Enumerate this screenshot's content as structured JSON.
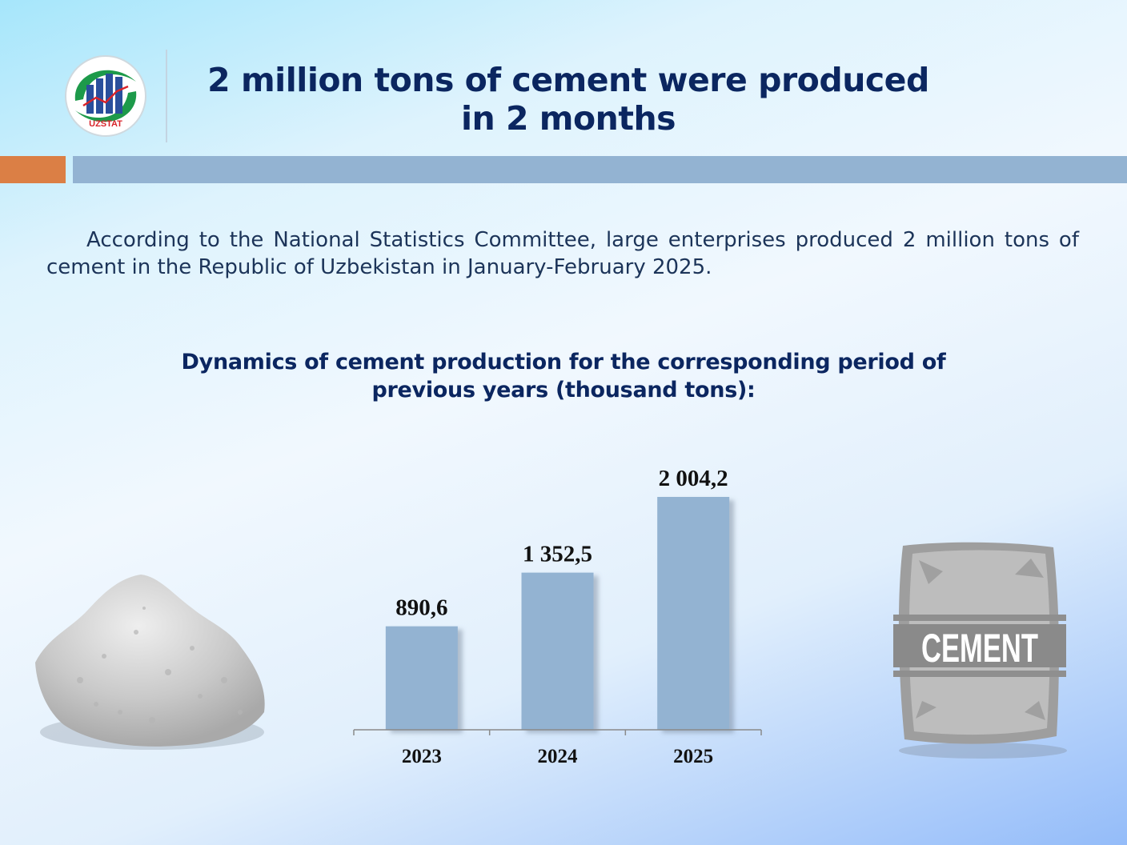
{
  "header": {
    "logo_text": "UZSTAT",
    "title_line1": "2 million tons of cement were produced",
    "title_line2": "in 2 months"
  },
  "intro": {
    "paragraph": "According to the National Statistics Committee, large enterprises produced 2 million tons of cement in the Republic of Uzbekistan in January-February 2025."
  },
  "chart_heading": {
    "line1": "Dynamics of cement production for the corresponding period of",
    "line2": "previous years (thousand tons):"
  },
  "colors": {
    "title": "#0b2660",
    "bar": "#93b3d2",
    "accent_orange": "#db7f45"
  },
  "decor": {
    "left_image": "cement-powder-pile",
    "right_image": "cement-bag",
    "bag_label": "CEMENT"
  },
  "chart_data": {
    "type": "bar",
    "categories": [
      "2023",
      "2024",
      "2025"
    ],
    "values": [
      890.6,
      1352.5,
      2004.2
    ],
    "value_labels": [
      "890,6",
      "1 352,5",
      "2 004,2"
    ],
    "title": "",
    "xlabel": "",
    "ylabel": "",
    "ylim": [
      0,
      2004.2
    ],
    "grid": false,
    "legend": "none"
  }
}
